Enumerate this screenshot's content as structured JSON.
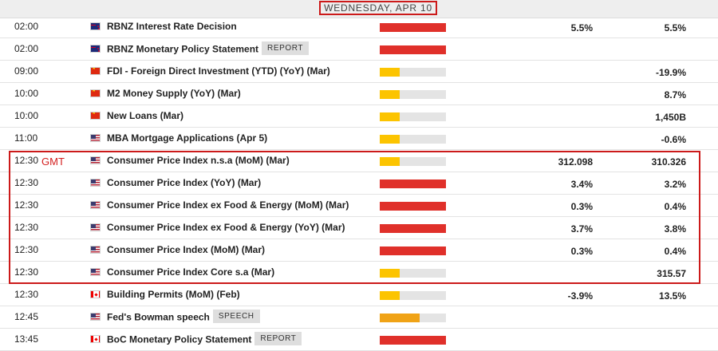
{
  "day_header": "WEDNESDAY, APR 10",
  "timezone_label": "GMT",
  "colors": {
    "high": "#e0302a",
    "medium": "#f0a316",
    "low": "#fcc400",
    "track": "#e4e4e4",
    "highlight_box": "#cc1a1a"
  },
  "rows": [
    {
      "time": "02:00",
      "flag": "nz",
      "event": "RBNZ Interest Rate Decision",
      "badge": "",
      "impact": "high",
      "impact_level": 1.0,
      "actual": "5.5%",
      "previous": "5.5%"
    },
    {
      "time": "02:00",
      "flag": "nz",
      "event": "RBNZ Monetary Policy Statement",
      "badge": "REPORT",
      "impact": "high",
      "impact_level": 1.0,
      "actual": "",
      "previous": ""
    },
    {
      "time": "09:00",
      "flag": "cn",
      "event": "FDI - Foreign Direct Investment (YTD) (YoY) (Mar)",
      "badge": "",
      "impact": "low",
      "impact_level": 0.3,
      "actual": "",
      "previous": "-19.9%"
    },
    {
      "time": "10:00",
      "flag": "cn",
      "event": "M2 Money Supply (YoY) (Mar)",
      "badge": "",
      "impact": "low",
      "impact_level": 0.3,
      "actual": "",
      "previous": "8.7%"
    },
    {
      "time": "10:00",
      "flag": "cn",
      "event": "New Loans (Mar)",
      "badge": "",
      "impact": "low",
      "impact_level": 0.3,
      "actual": "",
      "previous": "1,450B"
    },
    {
      "time": "11:00",
      "flag": "us",
      "event": "MBA Mortgage Applications (Apr 5)",
      "badge": "",
      "impact": "low",
      "impact_level": 0.3,
      "actual": "",
      "previous": "-0.6%"
    },
    {
      "time": "12:30",
      "flag": "us",
      "event": "Consumer Price Index n.s.a (MoM) (Mar)",
      "badge": "",
      "impact": "low",
      "impact_level": 0.3,
      "actual": "312.098",
      "previous": "310.326"
    },
    {
      "time": "12:30",
      "flag": "us",
      "event": "Consumer Price Index (YoY) (Mar)",
      "badge": "",
      "impact": "high",
      "impact_level": 1.0,
      "actual": "3.4%",
      "previous": "3.2%"
    },
    {
      "time": "12:30",
      "flag": "us",
      "event": "Consumer Price Index ex Food & Energy (MoM) (Mar)",
      "badge": "",
      "impact": "high",
      "impact_level": 1.0,
      "actual": "0.3%",
      "previous": "0.4%"
    },
    {
      "time": "12:30",
      "flag": "us",
      "event": "Consumer Price Index ex Food & Energy (YoY) (Mar)",
      "badge": "",
      "impact": "high",
      "impact_level": 1.0,
      "actual": "3.7%",
      "previous": "3.8%"
    },
    {
      "time": "12:30",
      "flag": "us",
      "event": "Consumer Price Index (MoM) (Mar)",
      "badge": "",
      "impact": "high",
      "impact_level": 1.0,
      "actual": "0.3%",
      "previous": "0.4%"
    },
    {
      "time": "12:30",
      "flag": "us",
      "event": "Consumer Price Index Core s.a (Mar)",
      "badge": "",
      "impact": "low",
      "impact_level": 0.3,
      "actual": "",
      "previous": "315.57"
    },
    {
      "time": "12:30",
      "flag": "ca",
      "event": "Building Permits (MoM) (Feb)",
      "badge": "",
      "impact": "low",
      "impact_level": 0.3,
      "actual": "-3.9%",
      "previous": "13.5%"
    },
    {
      "time": "12:45",
      "flag": "us",
      "event": "Fed's Bowman speech",
      "badge": "SPEECH",
      "impact": "medium",
      "impact_level": 0.6,
      "actual": "",
      "previous": ""
    },
    {
      "time": "13:45",
      "flag": "ca",
      "event": "BoC Monetary Policy Statement",
      "badge": "REPORT",
      "impact": "high",
      "impact_level": 1.0,
      "actual": "",
      "previous": ""
    }
  ]
}
